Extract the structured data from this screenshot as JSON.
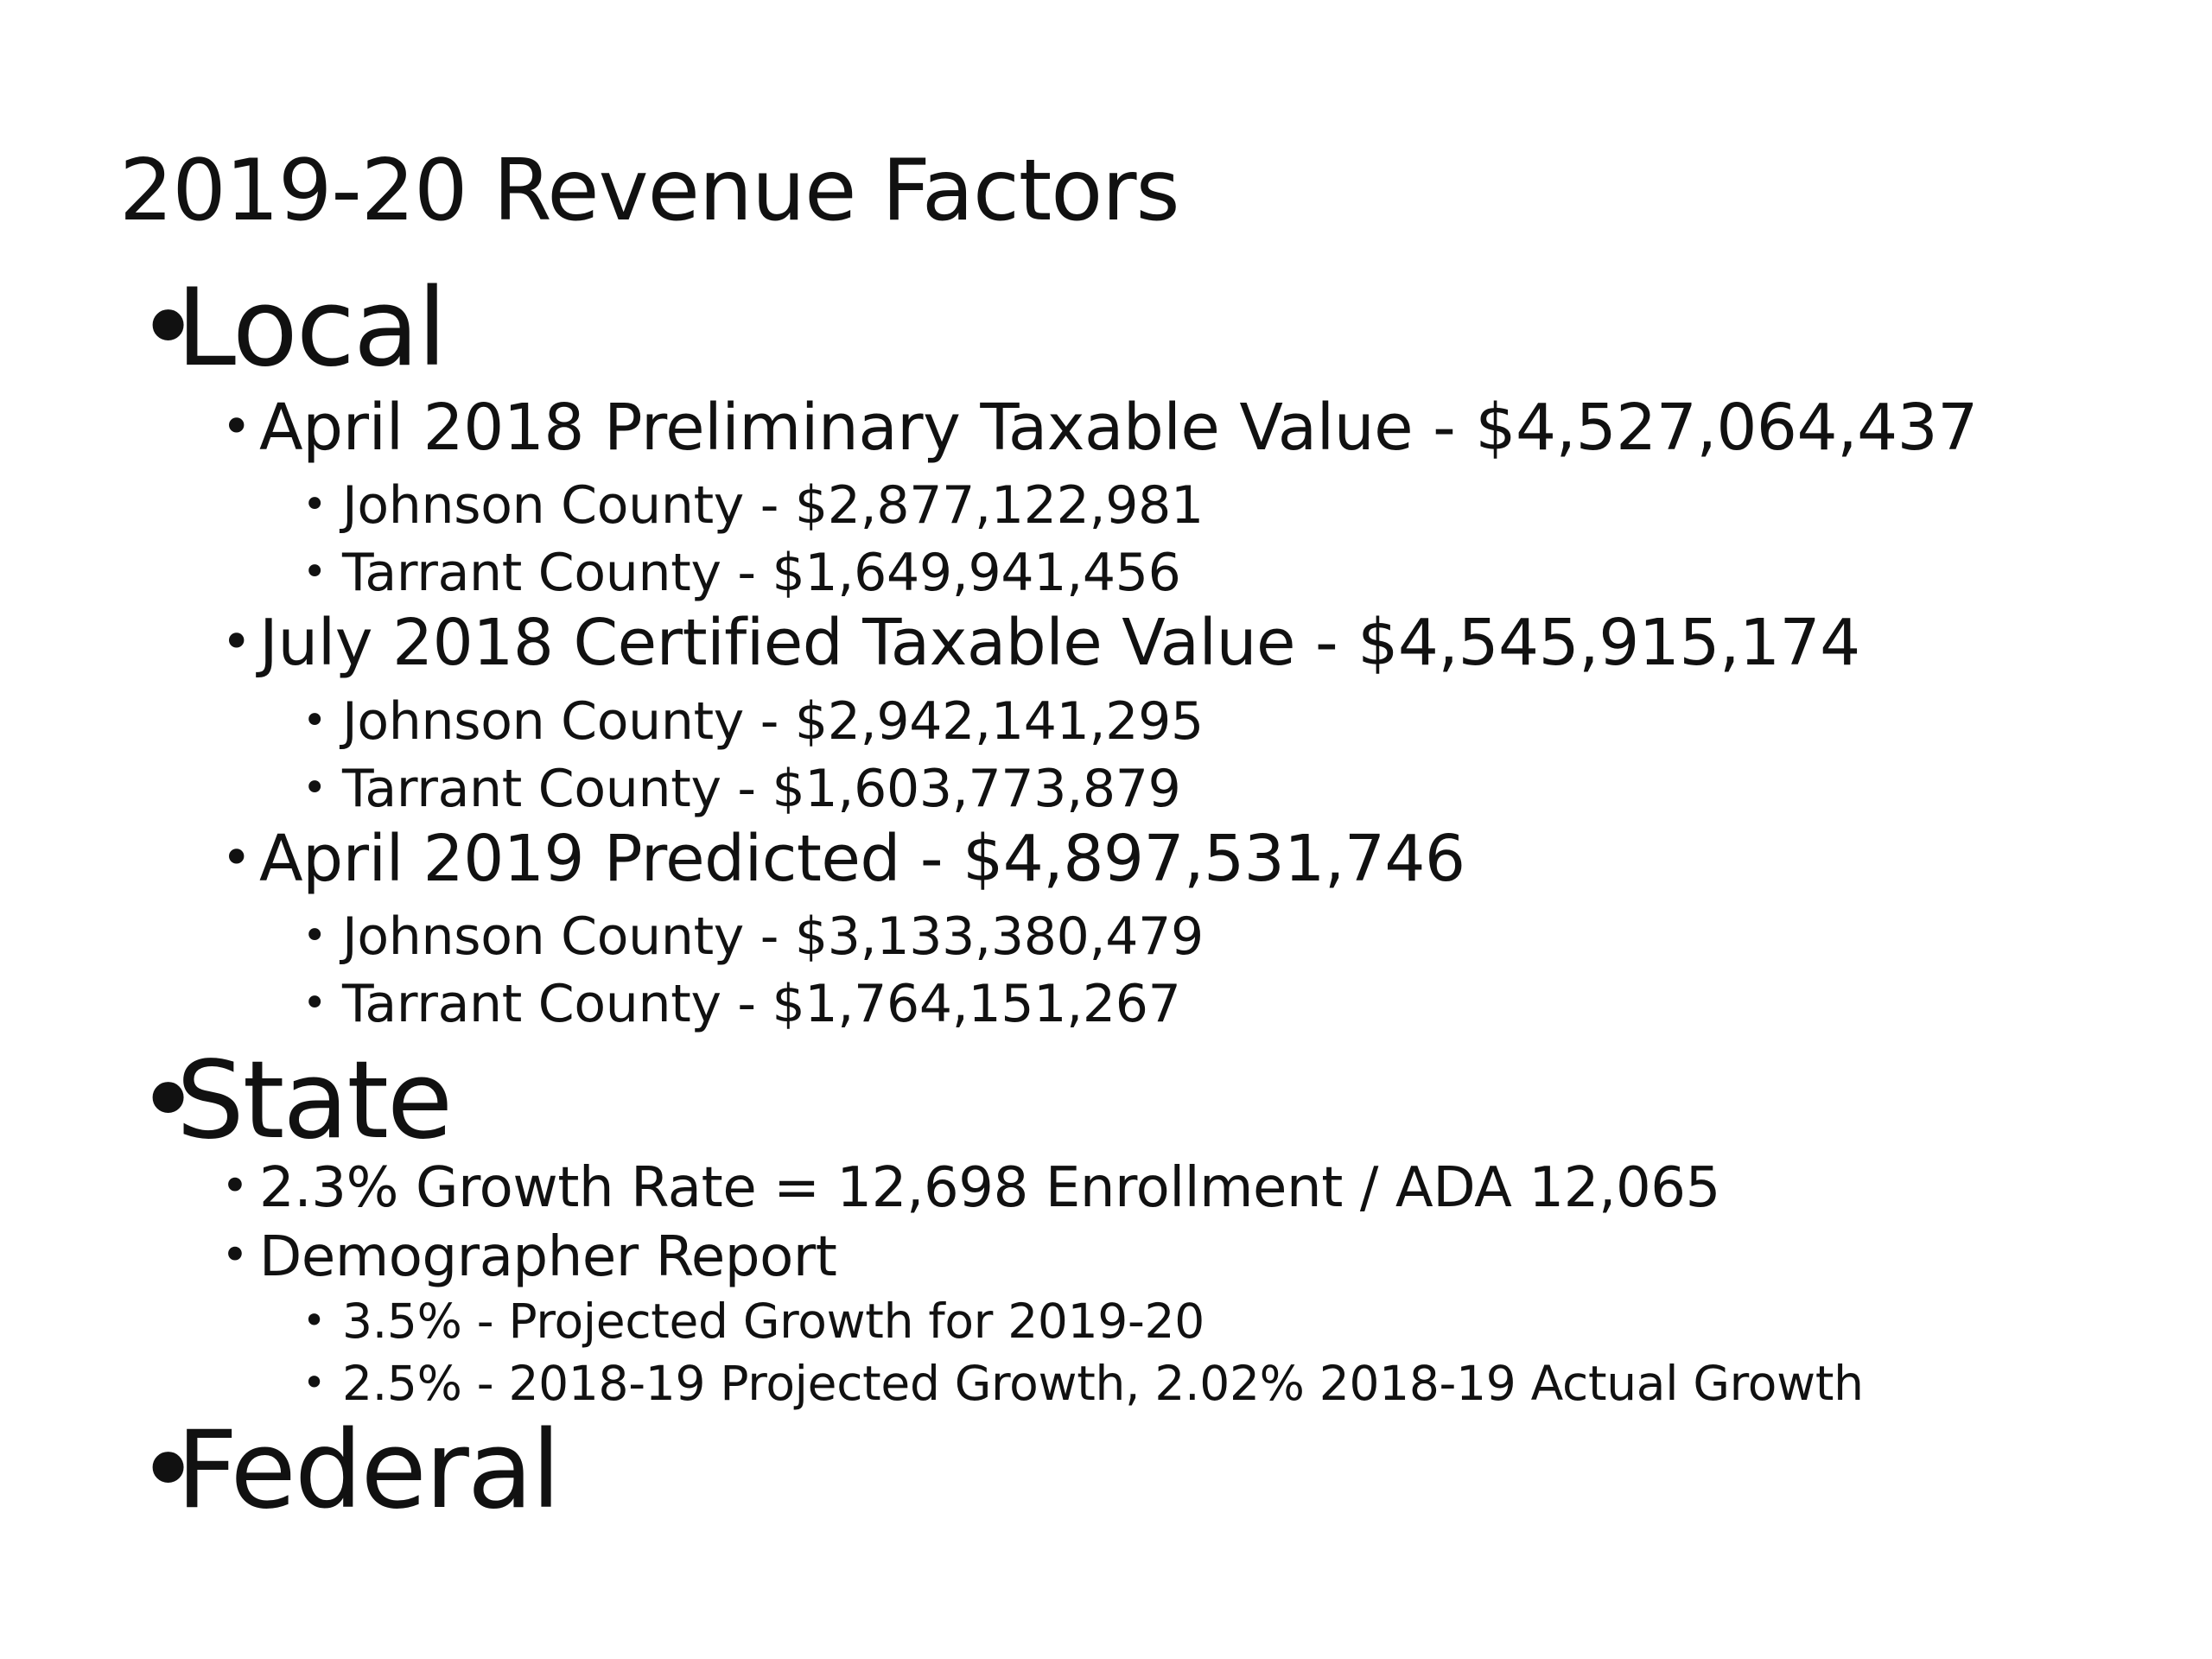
{
  "slide": {
    "title": "2019-20 Revenue Factors",
    "bullet_char": "•",
    "sections": {
      "local": {
        "label": "Local",
        "items": [
          {
            "text": "April 2018 Preliminary Taxable Value - $4,527,064,437",
            "sub": [
              "Johnson County - $2,877,122,981",
              "Tarrant County - $1,649,941,456"
            ]
          },
          {
            "text": "July 2018 Certified Taxable Value - $4,545,915,174",
            "sub": [
              "Johnson County - $2,942,141,295",
              "Tarrant County - $1,603,773,879"
            ]
          },
          {
            "text": "April 2019 Predicted - $4,897,531,746",
            "sub": [
              "Johnson County - $3,133,380,479",
              "Tarrant County - $1,764,151,267"
            ]
          }
        ]
      },
      "state": {
        "label": "State",
        "items": [
          {
            "text": "2.3% Growth Rate =  12,698 Enrollment / ADA 12,065",
            "sub": []
          },
          {
            "text": "Demographer Report",
            "sub": [
              "3.5% - Projected Growth for 2019-20",
              "2.5% - 2018-19 Projected Growth, 2.02% 2018-19 Actual Growth"
            ]
          }
        ]
      },
      "federal": {
        "label": "Federal",
        "items": []
      }
    }
  }
}
